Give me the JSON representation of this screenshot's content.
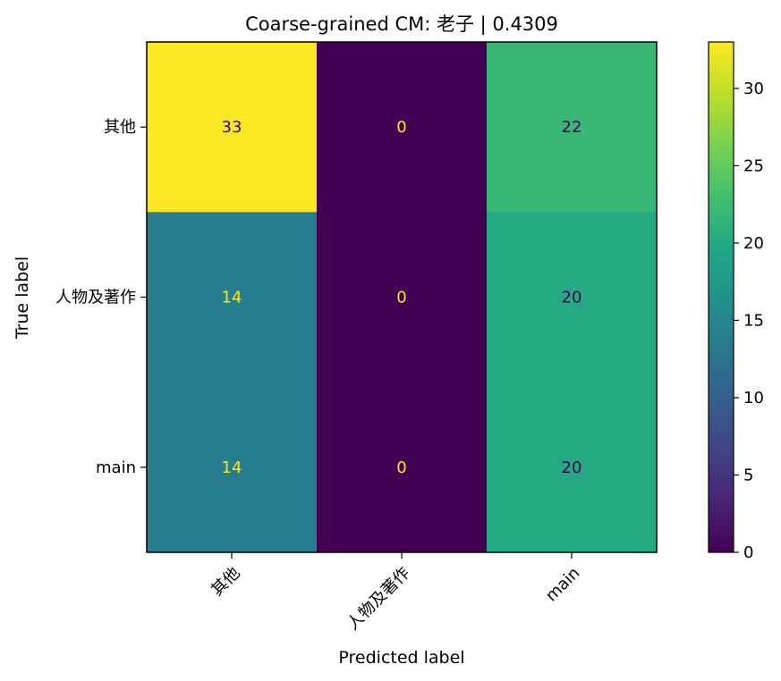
{
  "chart_data": {
    "type": "heatmap",
    "title": "Coarse-grained CM: 老子 | 0.4309",
    "xlabel": "Predicted label",
    "ylabel": "True label",
    "x_categories": [
      "其他",
      "人物及著作",
      "main"
    ],
    "y_categories": [
      "其他",
      "人物及著作",
      "main"
    ],
    "matrix": [
      [
        33,
        0,
        22
      ],
      [
        14,
        0,
        20
      ],
      [
        14,
        0,
        20
      ]
    ],
    "colormap": "viridis",
    "vmin": 0,
    "vmax": 33,
    "colorbar_ticks": [
      0,
      5,
      10,
      15,
      20,
      25,
      30
    ],
    "colors": {
      "text_light": "#fde725",
      "text_dark": "#440154"
    }
  }
}
